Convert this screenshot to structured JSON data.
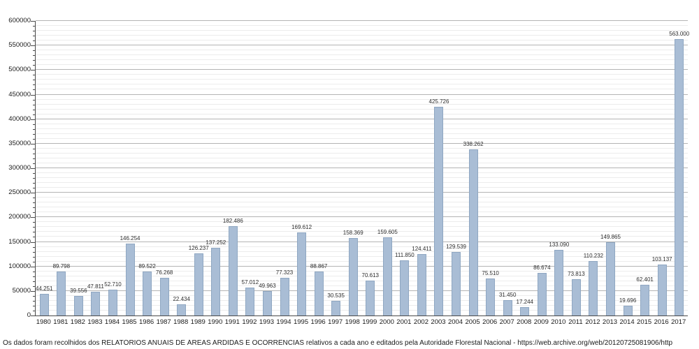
{
  "chart_data": {
    "type": "bar",
    "title": "",
    "xlabel": "",
    "ylabel": "",
    "categories": [
      "1980",
      "1981",
      "1982",
      "1983",
      "1984",
      "1985",
      "1986",
      "1987",
      "1988",
      "1989",
      "1990",
      "1991",
      "1992",
      "1993",
      "1994",
      "1995",
      "1996",
      "1997",
      "1998",
      "1999",
      "2000",
      "2001",
      "2002",
      "2003",
      "2004",
      "2005",
      "2006",
      "2007",
      "2008",
      "2009",
      "2010",
      "2011",
      "2012",
      "2013",
      "2014",
      "2015",
      "2016",
      "2017"
    ],
    "values": [
      44251,
      89798,
      39556,
      47811,
      52710,
      146254,
      89522,
      76268,
      22434,
      126237,
      137252,
      182486,
      57012,
      49963,
      77323,
      169612,
      88867,
      30535,
      158369,
      70613,
      159605,
      111850,
      124411,
      425726,
      129539,
      338262,
      75510,
      31450,
      17244,
      86674,
      133090,
      73813,
      110232,
      149865,
      19696,
      62401,
      103137,
      563000
    ],
    "value_labels": [
      "44.251",
      "89.798",
      "39.556",
      "47.811",
      "52.710",
      "146.254",
      "89.522",
      "76.268",
      "22.434",
      "126.237",
      "137.252",
      "182.486",
      "57.012",
      "49.963",
      "77.323",
      "169.612",
      "88.867",
      "30.535",
      "158.369",
      "70.613",
      "159.605",
      "111.850",
      "124.411",
      "425.726",
      "129.539",
      "338.262",
      "75.510",
      "31.450",
      "17.244",
      "86.674",
      "133.090",
      "73.813",
      "110.232",
      "149.865",
      "19.696",
      "62.401",
      "103.137",
      "563.000"
    ],
    "ylim": [
      0,
      600000
    ],
    "y_major_step": 50000,
    "y_minor_step": 10000,
    "y_ticks": [
      "0",
      "50000",
      "100000",
      "150000",
      "200000",
      "250000",
      "300000",
      "350000",
      "400000",
      "450000",
      "500000",
      "550000",
      "600000"
    ],
    "grid": "horizontal minor every 10000 (light), major every 50000 (darker)",
    "legend": "none",
    "colors": {
      "bar_fill": "#a9bdd5",
      "bar_border": "#8fa7c2",
      "grid_minor": "#ececec",
      "grid_major": "#b4b4b4",
      "axis": "#4a4a4a",
      "text": "#1a1a1a"
    }
  },
  "footer": {
    "text": "Os dados foram recolhidos dos RELATÓRIOS ANUAIS DE ÁREAS ARDIDAS E OCORRÊNCIAS relativos a cada ano e editados pela Autoridade Florestal Nacional - https://web.archive.org/web/20120725081906/http"
  }
}
